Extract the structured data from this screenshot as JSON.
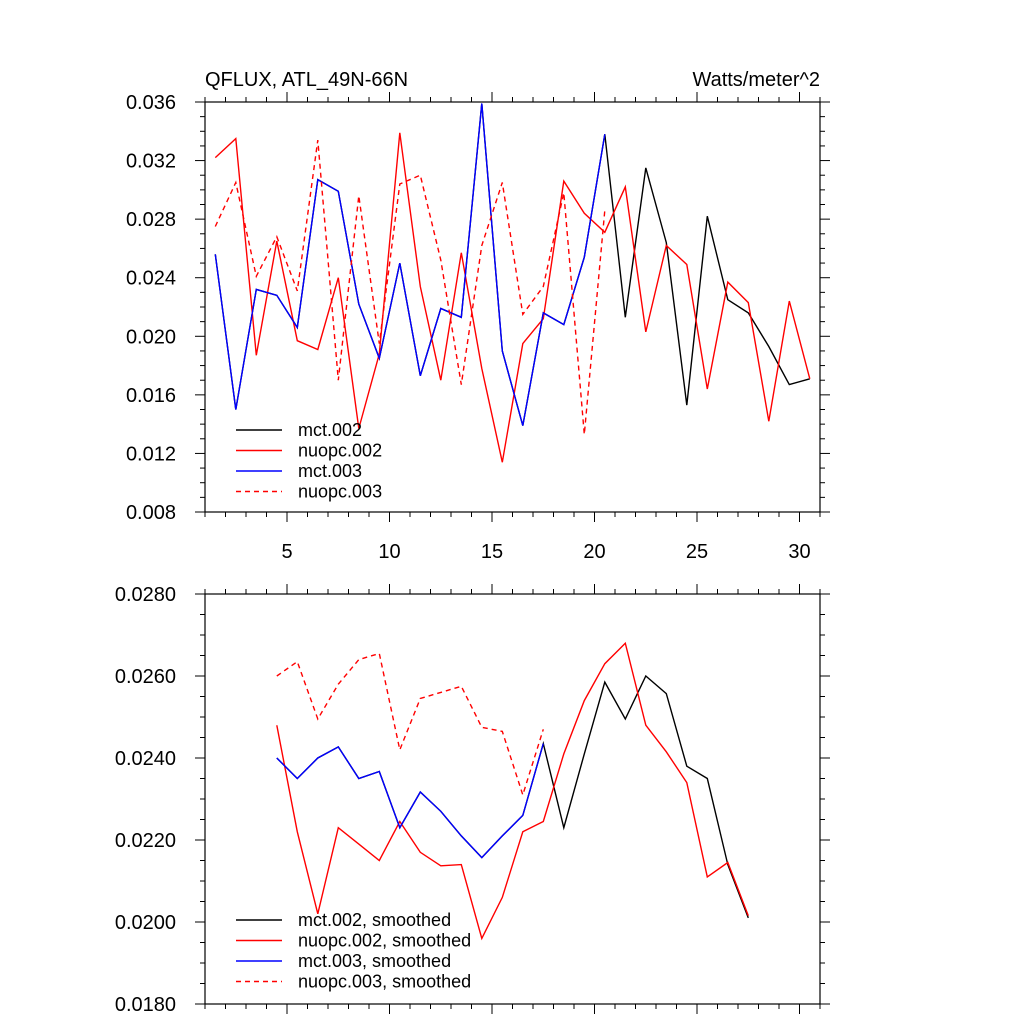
{
  "chart_data": [
    {
      "type": "line",
      "title": "QFLUX, ATL_49N-66N",
      "units_label": "Watts/meter^2",
      "xlabel": "",
      "ylabel": "",
      "xlim": [
        1,
        31
      ],
      "ylim": [
        0.008,
        0.036
      ],
      "xticks": [
        5,
        10,
        15,
        20,
        25,
        30
      ],
      "xtick_labels": [
        "5",
        "10",
        "15",
        "20",
        "25",
        "30"
      ],
      "yticks": [
        0.008,
        0.012,
        0.016,
        0.02,
        0.024,
        0.028,
        0.032,
        0.036
      ],
      "ytick_labels": [
        "0.008",
        "0.012",
        "0.016",
        "0.020",
        "0.024",
        "0.028",
        "0.032",
        "0.036"
      ],
      "grid": false,
      "legend_position": "bottom-left",
      "series": [
        {
          "name": "mct.002",
          "color": "#000000",
          "dash": "solid",
          "x": [
            1.5,
            2.5,
            3.5,
            4.5,
            5.5,
            6.5,
            7.5,
            8.5,
            9.5,
            10.5,
            11.5,
            12.5,
            13.5,
            14.5,
            15.5,
            16.5,
            17.5,
            18.5,
            19.5,
            20.5,
            21.5,
            22.5,
            23.5,
            24.5,
            25.5,
            26.5,
            27.5,
            28.5,
            29.5,
            30.5
          ],
          "values": [
            0.0256,
            0.015,
            0.0232,
            0.0228,
            0.0206,
            0.0307,
            0.0299,
            0.0222,
            0.0185,
            0.025,
            0.0173,
            0.0219,
            0.0213,
            0.0359,
            0.019,
            0.0139,
            0.0216,
            0.0208,
            0.0254,
            0.0338,
            0.0213,
            0.0315,
            0.0264,
            0.0153,
            0.0282,
            0.0225,
            0.0216,
            0.0193,
            0.0167,
            0.0171
          ]
        },
        {
          "name": "nuopc.002",
          "color": "#ff0000",
          "dash": "solid",
          "x": [
            1.5,
            2.5,
            3.5,
            4.5,
            5.5,
            6.5,
            7.5,
            8.5,
            9.5,
            10.5,
            11.5,
            12.5,
            13.5,
            14.5,
            15.5,
            16.5,
            17.5,
            18.5,
            19.5,
            20.5,
            21.5,
            22.5,
            23.5,
            24.5,
            25.5,
            26.5,
            27.5,
            28.5,
            29.5,
            30.5
          ],
          "values": [
            0.0322,
            0.0335,
            0.0187,
            0.0265,
            0.0197,
            0.0191,
            0.024,
            0.0137,
            0.0188,
            0.0339,
            0.0234,
            0.017,
            0.0257,
            0.0178,
            0.0114,
            0.0195,
            0.0212,
            0.0306,
            0.0284,
            0.0271,
            0.0302,
            0.0203,
            0.0262,
            0.0249,
            0.0164,
            0.0237,
            0.0223,
            0.0142,
            0.0224,
            0.0171
          ]
        },
        {
          "name": "mct.003",
          "color": "#0000ff",
          "dash": "solid",
          "x": [
            1.5,
            2.5,
            3.5,
            4.5,
            5.5,
            6.5,
            7.5,
            8.5,
            9.5,
            10.5,
            11.5,
            12.5,
            13.5,
            14.5,
            15.5,
            16.5,
            17.5,
            18.5,
            19.5,
            20.5
          ],
          "values": [
            0.0256,
            0.015,
            0.0232,
            0.0228,
            0.0206,
            0.0307,
            0.0299,
            0.0222,
            0.0185,
            0.025,
            0.0173,
            0.0219,
            0.0213,
            0.0359,
            0.019,
            0.0139,
            0.0216,
            0.0208,
            0.0254,
            0.0338
          ]
        },
        {
          "name": "nuopc.003",
          "color": "#ff0000",
          "dash": "dashed",
          "x": [
            1.5,
            2.5,
            3.5,
            4.5,
            5.5,
            6.5,
            7.5,
            8.5,
            9.5,
            10.5,
            11.5,
            12.5,
            13.5,
            14.5,
            15.5,
            16.5,
            17.5,
            18.5,
            19.5,
            20.5
          ],
          "values": [
            0.0275,
            0.0305,
            0.0241,
            0.0268,
            0.0231,
            0.0334,
            0.017,
            0.0296,
            0.0195,
            0.0304,
            0.031,
            0.0252,
            0.0167,
            0.0262,
            0.0305,
            0.0215,
            0.0234,
            0.0298,
            0.0133,
            0.0286
          ]
        }
      ]
    },
    {
      "type": "line",
      "title": "",
      "xlabel": "",
      "ylabel": "",
      "xlim": [
        1,
        31
      ],
      "ylim": [
        0.018,
        0.028
      ],
      "xticks": [
        5,
        10,
        15,
        20,
        25,
        30
      ],
      "xtick_labels": [],
      "yticks": [
        0.018,
        0.02,
        0.022,
        0.024,
        0.026,
        0.028
      ],
      "ytick_labels": [
        "0.0180",
        "0.0200",
        "0.0220",
        "0.0240",
        "0.0260",
        "0.0280"
      ],
      "grid": false,
      "legend_position": "bottom-left",
      "series": [
        {
          "name": "mct.002, smoothed",
          "color": "#000000",
          "dash": "solid",
          "x": [
            4.5,
            5.5,
            6.5,
            7.5,
            8.5,
            9.5,
            10.5,
            11.5,
            12.5,
            13.5,
            14.5,
            15.5,
            16.5,
            17.5,
            18.5,
            19.5,
            20.5,
            21.5,
            22.5,
            23.5,
            24.5,
            25.5,
            26.5,
            27.5
          ],
          "values": [
            0.024,
            0.0235,
            0.024,
            0.02427,
            0.0235,
            0.02367,
            0.0223,
            0.02317,
            0.0227,
            0.0221,
            0.02157,
            0.0221,
            0.0226,
            0.02435,
            0.0223,
            0.0241,
            0.02585,
            0.02495,
            0.026,
            0.02557,
            0.0238,
            0.0235,
            0.0214,
            0.0201
          ]
        },
        {
          "name": "nuopc.002, smoothed",
          "color": "#ff0000",
          "dash": "solid",
          "x": [
            4.5,
            5.5,
            6.5,
            7.5,
            8.5,
            9.5,
            10.5,
            11.5,
            12.5,
            13.5,
            14.5,
            15.5,
            16.5,
            17.5,
            18.5,
            19.5,
            20.5,
            21.5,
            22.5,
            23.5,
            24.5,
            25.5,
            26.5,
            27.5
          ],
          "values": [
            0.0248,
            0.0222,
            0.0202,
            0.0223,
            0.0219,
            0.0215,
            0.02245,
            0.0217,
            0.02137,
            0.0214,
            0.0196,
            0.0206,
            0.0222,
            0.02245,
            0.0241,
            0.0254,
            0.0263,
            0.0268,
            0.0248,
            0.02415,
            0.0234,
            0.0211,
            0.02145,
            0.02015
          ]
        },
        {
          "name": "mct.003, smoothed",
          "color": "#0000ff",
          "dash": "solid",
          "x": [
            4.5,
            5.5,
            6.5,
            7.5,
            8.5,
            9.5,
            10.5,
            11.5,
            12.5,
            13.5,
            14.5,
            15.5,
            16.5,
            17.5
          ],
          "values": [
            0.024,
            0.0235,
            0.024,
            0.02427,
            0.0235,
            0.02367,
            0.0223,
            0.02317,
            0.0227,
            0.0221,
            0.02157,
            0.0221,
            0.0226,
            0.02435
          ]
        },
        {
          "name": "nuopc.003, smoothed",
          "color": "#ff0000",
          "dash": "dashed",
          "x": [
            4.5,
            5.5,
            6.5,
            7.5,
            8.5,
            9.5,
            10.5,
            11.5,
            12.5,
            13.5,
            14.5,
            15.5,
            16.5,
            17.5
          ],
          "values": [
            0.026,
            0.02635,
            0.02495,
            0.0258,
            0.0264,
            0.02655,
            0.0242,
            0.02545,
            0.0256,
            0.02575,
            0.02475,
            0.02465,
            0.0231,
            0.0247
          ]
        }
      ]
    }
  ]
}
